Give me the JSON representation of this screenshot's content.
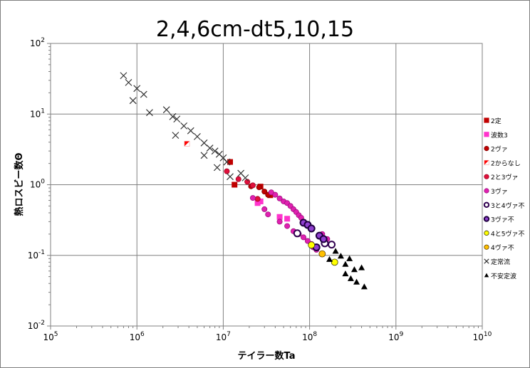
{
  "chart_data": {
    "type": "scatter",
    "title": "2,4,6cm-dt5,10,15",
    "xlabel": "テイラー数Ta",
    "ylabel": "熱ロスビー数Θ",
    "x_scale": "log",
    "y_scale": "log",
    "xlim": [
      100000,
      10000000000
    ],
    "ylim": [
      0.01,
      100
    ],
    "grid": true,
    "legend_position": "right",
    "x_ticks": [
      {
        "mant": "10",
        "exp": "5"
      },
      {
        "mant": "10",
        "exp": "6"
      },
      {
        "mant": "10",
        "exp": "7"
      },
      {
        "mant": "10",
        "exp": "8"
      },
      {
        "mant": "10",
        "exp": "9"
      },
      {
        "mant": "10",
        "exp": "10"
      }
    ],
    "y_ticks": [
      {
        "mant": "10",
        "exp": "-2"
      },
      {
        "mant": "10",
        "exp": "-1"
      },
      {
        "mant": "10",
        "exp": "0"
      },
      {
        "mant": "10",
        "exp": "1"
      },
      {
        "mant": "10",
        "exp": "2"
      }
    ],
    "series": [
      {
        "name": "2定",
        "marker": "square",
        "color": "#c00000",
        "stroke": "#c00000",
        "points": [
          [
            12000000,
            2.1
          ],
          [
            13500000,
            1.0
          ],
          [
            27000000,
            0.94
          ],
          [
            35000000,
            0.71
          ]
        ]
      },
      {
        "name": "波数3",
        "marker": "square",
        "color": "#ff33cc",
        "stroke": "#ff33cc",
        "points": [
          [
            25000000,
            0.55
          ],
          [
            27000000,
            0.58
          ],
          [
            45000000,
            0.35
          ],
          [
            55000000,
            0.33
          ]
        ]
      },
      {
        "name": "2ヴァ",
        "marker": "circle",
        "color": "#c00000",
        "stroke": "#800000",
        "points": [
          [
            21000000,
            0.95
          ],
          [
            26000000,
            0.92
          ],
          [
            30000000,
            0.8
          ],
          [
            33000000,
            0.72
          ]
        ]
      },
      {
        "name": "2からなし",
        "marker": "halfsquare",
        "color": "#ff0000",
        "stroke": "#ff0000",
        "points": [
          [
            3800000,
            3.8
          ]
        ]
      },
      {
        "name": "2と3ヴァ",
        "marker": "circle",
        "color": "#e0103c",
        "stroke": "#a00020",
        "points": [
          [
            11000000,
            1.55
          ],
          [
            15000000,
            1.2
          ],
          [
            19000000,
            1.1
          ],
          [
            22000000,
            0.98
          ],
          [
            25000000,
            0.63
          ]
        ]
      },
      {
        "name": "3ヴァ",
        "marker": "circle",
        "color": "#e020b0",
        "stroke": "#a01080",
        "points": [
          [
            22000000,
            0.65
          ],
          [
            30000000,
            0.45
          ],
          [
            33000000,
            0.38
          ],
          [
            36000000,
            0.78
          ],
          [
            40000000,
            0.72
          ],
          [
            45000000,
            0.64
          ],
          [
            50000000,
            0.58
          ],
          [
            55000000,
            0.55
          ],
          [
            60000000,
            0.5
          ],
          [
            65000000,
            0.45
          ],
          [
            70000000,
            0.41
          ],
          [
            75000000,
            0.37
          ],
          [
            80000000,
            0.34
          ],
          [
            45000000,
            0.3
          ],
          [
            55000000,
            0.26
          ],
          [
            65000000,
            0.22
          ],
          [
            75000000,
            0.2
          ],
          [
            85000000,
            0.18
          ],
          [
            95000000,
            0.16
          ],
          [
            105000000,
            0.145
          ],
          [
            110000000,
            0.13
          ],
          [
            120000000,
            0.12
          ],
          [
            140000000,
            0.2
          ],
          [
            160000000,
            0.17
          ]
        ]
      },
      {
        "name": "3と4ヴァ不",
        "marker": "circle",
        "color": "#ffffff",
        "stroke": "#30004f",
        "points": [
          [
            72000000,
            0.205
          ],
          [
            150000000,
            0.148
          ],
          [
            180000000,
            0.142
          ]
        ]
      },
      {
        "name": "3ヴァ不",
        "marker": "circle",
        "color": "#9040d0",
        "stroke": "#200040",
        "points": [
          [
            85000000,
            0.29
          ],
          [
            95000000,
            0.27
          ],
          [
            105000000,
            0.24
          ],
          [
            130000000,
            0.19
          ],
          [
            145000000,
            0.17
          ],
          [
            120000000,
            0.13
          ]
        ]
      },
      {
        "name": "4と5ヴァ不",
        "marker": "circle",
        "color": "#ffff00",
        "stroke": "#404000",
        "points": [
          [
            105000000,
            0.14
          ],
          [
            195000000,
            0.08
          ]
        ]
      },
      {
        "name": "4ヴァ不",
        "marker": "circle",
        "color": "#ffc000",
        "stroke": "#604000",
        "points": [
          [
            140000000,
            0.105
          ]
        ]
      },
      {
        "name": "定常流",
        "marker": "x",
        "color": "#333333",
        "stroke": "#333333",
        "points": [
          [
            700000,
            35
          ],
          [
            800000,
            28
          ],
          [
            1000000,
            23
          ],
          [
            1200000,
            19
          ],
          [
            900000,
            15.5
          ],
          [
            1400000,
            10.5
          ],
          [
            2200000,
            11.5
          ],
          [
            2600000,
            9.2
          ],
          [
            2900000,
            8.5
          ],
          [
            3500000,
            6.8
          ],
          [
            4200000,
            5.8
          ],
          [
            5000000,
            4.8
          ],
          [
            6000000,
            3.9
          ],
          [
            7000000,
            3.3
          ],
          [
            8000000,
            3.0
          ],
          [
            9000000,
            2.7
          ],
          [
            10000000,
            2.4
          ],
          [
            11000000,
            2.1
          ],
          [
            2800000,
            5.0
          ],
          [
            6000000,
            2.6
          ],
          [
            8500000,
            1.75
          ],
          [
            12000000,
            1.3
          ],
          [
            16000000,
            1.45
          ],
          [
            18000000,
            1.25
          ]
        ]
      },
      {
        "name": "不安定波",
        "marker": "triangle",
        "color": "#000000",
        "stroke": "#000000",
        "points": [
          [
            170000000,
            0.088
          ],
          [
            200000000,
            0.115
          ],
          [
            230000000,
            0.098
          ],
          [
            260000000,
            0.075
          ],
          [
            290000000,
            0.09
          ],
          [
            330000000,
            0.063
          ],
          [
            260000000,
            0.055
          ],
          [
            300000000,
            0.047
          ],
          [
            350000000,
            0.042
          ],
          [
            400000000,
            0.067
          ],
          [
            430000000,
            0.036
          ]
        ]
      }
    ]
  }
}
